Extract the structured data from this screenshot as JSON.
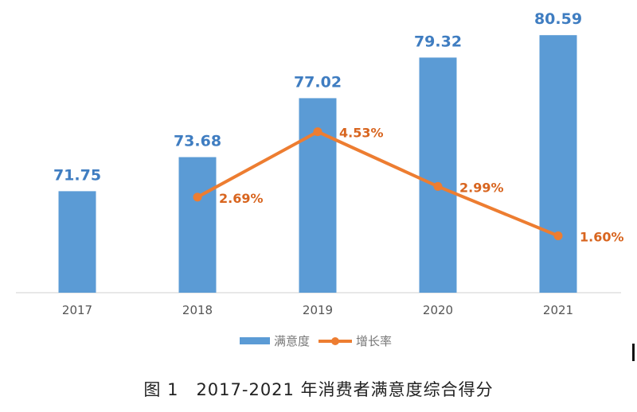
{
  "chart_data": {
    "type": "bar",
    "title": "图 1　2017-2021 年消费者满意度综合得分",
    "categories": [
      "2017",
      "2018",
      "2019",
      "2020",
      "2021"
    ],
    "series": [
      {
        "name": "满意度",
        "type": "bar",
        "axis": "left",
        "color": "#5B9BD5",
        "values": [
          71.75,
          73.68,
          77.02,
          79.32,
          80.59
        ],
        "labels": [
          "71.75",
          "73.68",
          "77.02",
          "79.32",
          "80.59"
        ]
      },
      {
        "name": "增长率",
        "type": "line",
        "axis": "right",
        "color": "#ED7D31",
        "values": [
          null,
          2.69,
          4.53,
          2.99,
          1.6
        ],
        "labels": [
          "",
          "2.69%",
          "4.53%",
          "2.99%",
          "1.60%"
        ]
      }
    ],
    "ylim": [
      66,
      81.5
    ],
    "y2lim": [
      0,
      7.7
    ],
    "grid": false,
    "legend": "bottom"
  }
}
